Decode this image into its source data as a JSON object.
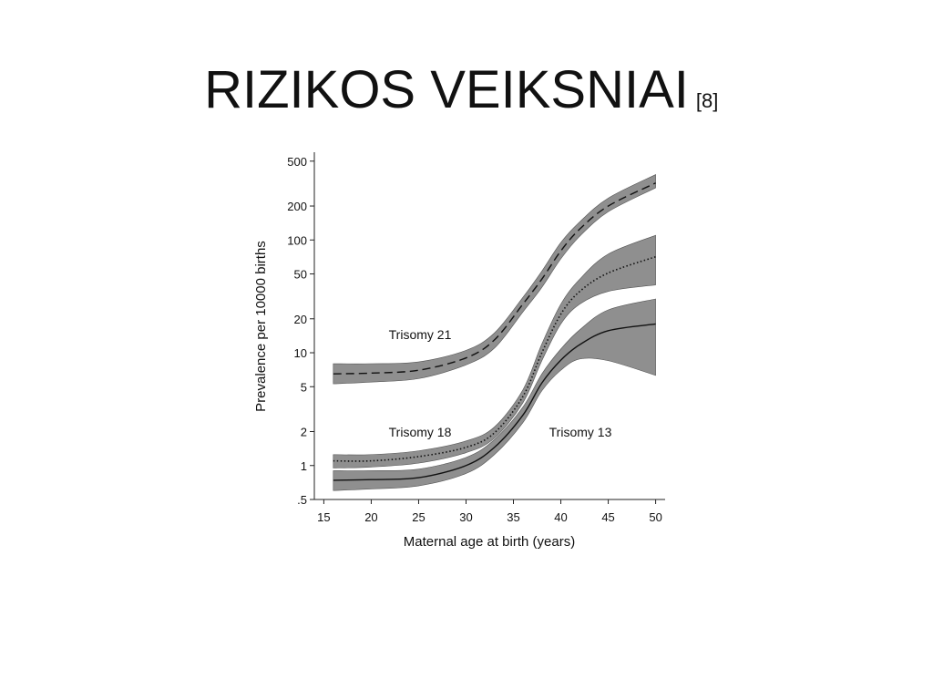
{
  "chart_data": {
    "type": "line",
    "title": "RIZIKOS VEIKSNIAI",
    "reference": "[8]",
    "x_label": "Maternal age at birth (years)",
    "y_label": "Prevalence per 10000 births",
    "log_y": true,
    "xlim": [
      14,
      51
    ],
    "ylim": [
      0.5,
      600
    ],
    "xticks": [
      15,
      20,
      25,
      30,
      35,
      40,
      45,
      50
    ],
    "yticks": [
      {
        "value": 0.5,
        "label": ".5"
      },
      1,
      2,
      5,
      10,
      20,
      50,
      100,
      200,
      500
    ],
    "band_color": "#8f8f8f",
    "x": [
      16,
      20,
      25,
      30,
      33,
      36,
      38,
      40,
      42,
      45,
      50
    ],
    "series": [
      {
        "name": "Trisomy 21",
        "color": "#111111",
        "linestyle": "dashed",
        "values": [
          6.5,
          6.6,
          7,
          9,
          13,
          27,
          45,
          80,
          125,
          200,
          320
        ],
        "lower": [
          5.3,
          5.5,
          5.9,
          7.8,
          11,
          23,
          38,
          68,
          108,
          178,
          290
        ],
        "upper": [
          8,
          8,
          8.3,
          10.5,
          15,
          31,
          53,
          95,
          145,
          235,
          380
        ]
      },
      {
        "name": "Trisomy 18",
        "color": "#111111",
        "linestyle": "dotted",
        "values": [
          1.1,
          1.1,
          1.2,
          1.45,
          1.95,
          4.1,
          10,
          22,
          35,
          51,
          71
        ],
        "lower": [
          0.95,
          0.97,
          1.05,
          1.3,
          1.75,
          3.6,
          8.5,
          18,
          27,
          35,
          40
        ],
        "upper": [
          1.25,
          1.25,
          1.35,
          1.65,
          2.2,
          4.7,
          12,
          27,
          45,
          75,
          110
        ]
      },
      {
        "name": "Trisomy 13",
        "color": "#111111",
        "linestyle": "solid",
        "values": [
          0.74,
          0.75,
          0.78,
          1.0,
          1.45,
          2.8,
          5.4,
          8.6,
          11.8,
          15.7,
          18
        ],
        "lower": [
          0.6,
          0.62,
          0.66,
          0.85,
          1.25,
          2.4,
          4.6,
          7,
          8.8,
          8.5,
          6.3
        ],
        "upper": [
          0.9,
          0.9,
          0.93,
          1.18,
          1.7,
          3.3,
          6.5,
          10.8,
          16,
          24,
          30
        ]
      }
    ]
  }
}
